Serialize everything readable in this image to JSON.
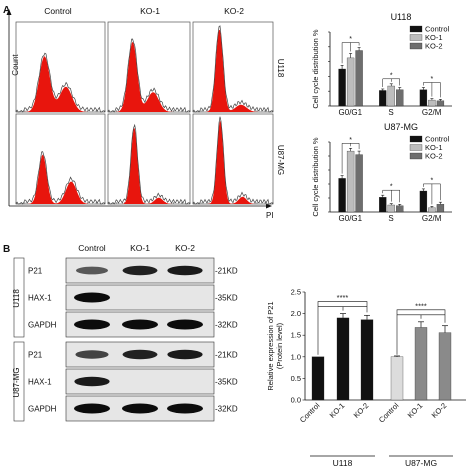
{
  "panel_labels": {
    "a": "A",
    "b": "B"
  },
  "flow": {
    "columns": [
      "Control",
      "KO-1",
      "KO-2"
    ],
    "rows": [
      "U118",
      "U87-MG"
    ],
    "y_axis_label": "Count",
    "x_axis_label": "PI",
    "fill_color": "#e8150d",
    "outline_color": "#444444"
  },
  "western": {
    "columns": [
      "Control",
      "KO-1",
      "KO-2"
    ],
    "groups": [
      {
        "name": "U118",
        "rows": [
          {
            "protein": "P21",
            "size": "-21KD",
            "bands": [
              0.45,
              0.85,
              0.9
            ]
          },
          {
            "protein": "HAX-1",
            "size": "-35KD",
            "bands": [
              1.0,
              0,
              0
            ]
          },
          {
            "protein": "GAPDH",
            "size": "-32KD",
            "bands": [
              1.0,
              1.0,
              1.0
            ]
          }
        ]
      },
      {
        "name": "U87-MG",
        "rows": [
          {
            "protein": "P21",
            "size": "-21KD",
            "bands": [
              0.6,
              0.85,
              0.9
            ]
          },
          {
            "protein": "HAX-1",
            "size": "-35KD",
            "bands": [
              0.9,
              0,
              0
            ]
          },
          {
            "protein": "GAPDH",
            "size": "-32KD",
            "bands": [
              1.0,
              1.0,
              1.0
            ]
          }
        ]
      }
    ]
  },
  "chart_data": [
    {
      "type": "bar",
      "title": "U118",
      "categories": [
        "G0/G1",
        "S",
        "G2/M"
      ],
      "ylabel": "Cell cycle distribution %",
      "ylim": [
        0,
        100
      ],
      "yticks": [
        0,
        20,
        40,
        60,
        80,
        100
      ],
      "series": [
        {
          "name": "Control",
          "color": "#111111",
          "values": [
            50,
            21,
            22
          ],
          "errors": [
            5,
            2,
            3
          ]
        },
        {
          "name": "KO-1",
          "color": "#bdbdbd",
          "values": [
            65,
            27,
            8
          ],
          "errors": [
            6,
            3,
            2
          ]
        },
        {
          "name": "KO-2",
          "color": "#6e6e6e",
          "values": [
            75,
            22,
            7
          ],
          "errors": [
            4,
            3,
            2
          ]
        }
      ],
      "legend": "top-right",
      "significance": "*"
    },
    {
      "type": "bar",
      "title": "U87-MG",
      "categories": [
        "G0/G1",
        "S",
        "G2/M"
      ],
      "ylabel": "Cell cycle distribution %",
      "ylim": [
        0,
        100
      ],
      "yticks": [
        0,
        20,
        40,
        60,
        80,
        100
      ],
      "series": [
        {
          "name": "Control",
          "color": "#111111",
          "values": [
            48,
            21,
            30
          ],
          "errors": [
            4,
            3,
            3
          ]
        },
        {
          "name": "KO-1",
          "color": "#bdbdbd",
          "values": [
            87,
            10,
            6
          ],
          "errors": [
            4,
            2,
            2
          ]
        },
        {
          "name": "KO-2",
          "color": "#6e6e6e",
          "values": [
            82,
            9,
            11
          ],
          "errors": [
            5,
            2,
            3
          ]
        }
      ],
      "legend": "top-right",
      "significance": "*"
    },
    {
      "type": "bar",
      "ylabel": "Relative expression of  P21\n(Protein level)",
      "ylim": [
        0,
        2.5
      ],
      "yticks": [
        0.0,
        0.5,
        1.0,
        1.5,
        2.0,
        2.5
      ],
      "categories": [
        "Control",
        "KO-1",
        "KO-2",
        "Control",
        "KO-1",
        "KO-2"
      ],
      "groups": [
        "U118",
        "U87-MG"
      ],
      "values": [
        1.0,
        1.9,
        1.86,
        1.0,
        1.68,
        1.56
      ],
      "errors": [
        0,
        0.1,
        0.1,
        0.02,
        0.13,
        0.16
      ],
      "colors": [
        "#111111",
        "#111111",
        "#111111",
        "#dcdcdc",
        "#8a8a8a",
        "#8a8a8a"
      ],
      "significance": "****"
    }
  ]
}
